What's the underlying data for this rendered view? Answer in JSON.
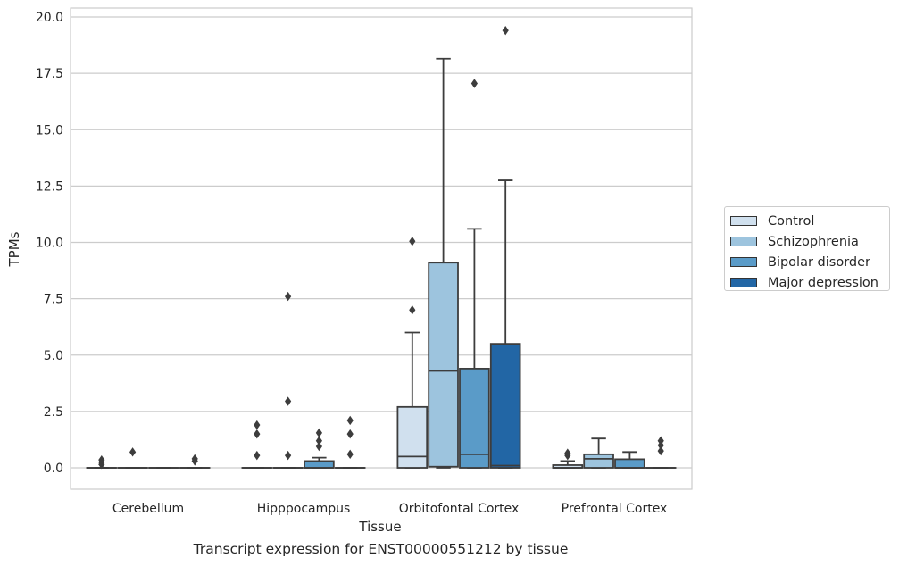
{
  "chart_data": {
    "type": "box",
    "categories": [
      "Cerebellum",
      "Hipppocampus",
      "Orbitofontal Cortex",
      "Prefrontal Cortex"
    ],
    "xlabel": "Tissue",
    "ylabel": "TPMs",
    "ylim": [
      -0.95,
      20.4
    ],
    "yticks": [
      "0.0",
      "2.5",
      "5.0",
      "7.5",
      "10.0",
      "12.5",
      "15.0",
      "17.5",
      "20.0"
    ],
    "ytick_values": [
      0,
      2.5,
      5,
      7.5,
      10,
      12.5,
      15,
      17.5,
      20
    ],
    "grid": true,
    "legend_position": "right",
    "series": [
      {
        "name": "Control",
        "color": "#d0e0ee",
        "boxes": [
          {
            "q1": 0,
            "median": 0,
            "q3": 0,
            "whislo": 0,
            "whishi": 0,
            "fliers": [
              0.15,
              0.25,
              0.35
            ]
          },
          {
            "q1": 0,
            "median": 0,
            "q3": 0,
            "whislo": 0,
            "whishi": 0,
            "fliers": [
              0.55,
              1.5,
              1.9
            ]
          },
          {
            "q1": 0,
            "median": 0.5,
            "q3": 2.7,
            "whislo": 0,
            "whishi": 6.0,
            "fliers": [
              7.0,
              10.05
            ]
          },
          {
            "q1": 0,
            "median": 0,
            "q3": 0.12,
            "whislo": 0,
            "whishi": 0.3,
            "fliers": [
              0.55,
              0.65
            ]
          }
        ]
      },
      {
        "name": "Schizophrenia",
        "color": "#9dc4de",
        "boxes": [
          {
            "q1": 0,
            "median": 0,
            "q3": 0,
            "whislo": 0,
            "whishi": 0,
            "fliers": [
              0.7
            ]
          },
          {
            "q1": 0,
            "median": 0,
            "q3": 0,
            "whislo": 0,
            "whishi": 0,
            "fliers": [
              0.55,
              2.95,
              7.6
            ]
          },
          {
            "q1": 0.05,
            "median": 4.3,
            "q3": 9.1,
            "whislo": 0,
            "whishi": 18.15,
            "fliers": []
          },
          {
            "q1": 0,
            "median": 0.4,
            "q3": 0.6,
            "whislo": 0,
            "whishi": 1.3,
            "fliers": []
          }
        ]
      },
      {
        "name": "Bipolar disorder",
        "color": "#5a9bc8",
        "boxes": [
          {
            "q1": 0,
            "median": 0,
            "q3": 0,
            "whislo": 0,
            "whishi": 0,
            "fliers": []
          },
          {
            "q1": 0,
            "median": 0,
            "q3": 0.3,
            "whislo": 0,
            "whishi": 0.45,
            "fliers": [
              0.95,
              1.2,
              1.55
            ]
          },
          {
            "q1": 0,
            "median": 0.6,
            "q3": 4.4,
            "whislo": 0,
            "whishi": 10.6,
            "fliers": [
              17.05
            ]
          },
          {
            "q1": 0,
            "median": 0,
            "q3": 0.38,
            "whislo": 0,
            "whishi": 0.7,
            "fliers": []
          }
        ]
      },
      {
        "name": "Major depression",
        "color": "#2266a5",
        "boxes": [
          {
            "q1": 0,
            "median": 0,
            "q3": 0,
            "whislo": 0,
            "whishi": 0,
            "fliers": [
              0.3,
              0.4
            ]
          },
          {
            "q1": 0,
            "median": 0,
            "q3": 0,
            "whislo": 0,
            "whishi": 0,
            "fliers": [
              0.6,
              1.5,
              2.1
            ]
          },
          {
            "q1": 0,
            "median": 0.1,
            "q3": 5.5,
            "whislo": 0,
            "whishi": 12.75,
            "fliers": [
              19.4
            ]
          },
          {
            "q1": 0,
            "median": 0,
            "q3": 0,
            "whislo": 0,
            "whishi": 0,
            "fliers": [
              0.75,
              1.0,
              1.2
            ]
          }
        ]
      }
    ]
  },
  "caption": "Transcript expression for ENST00000551212 by tissue"
}
